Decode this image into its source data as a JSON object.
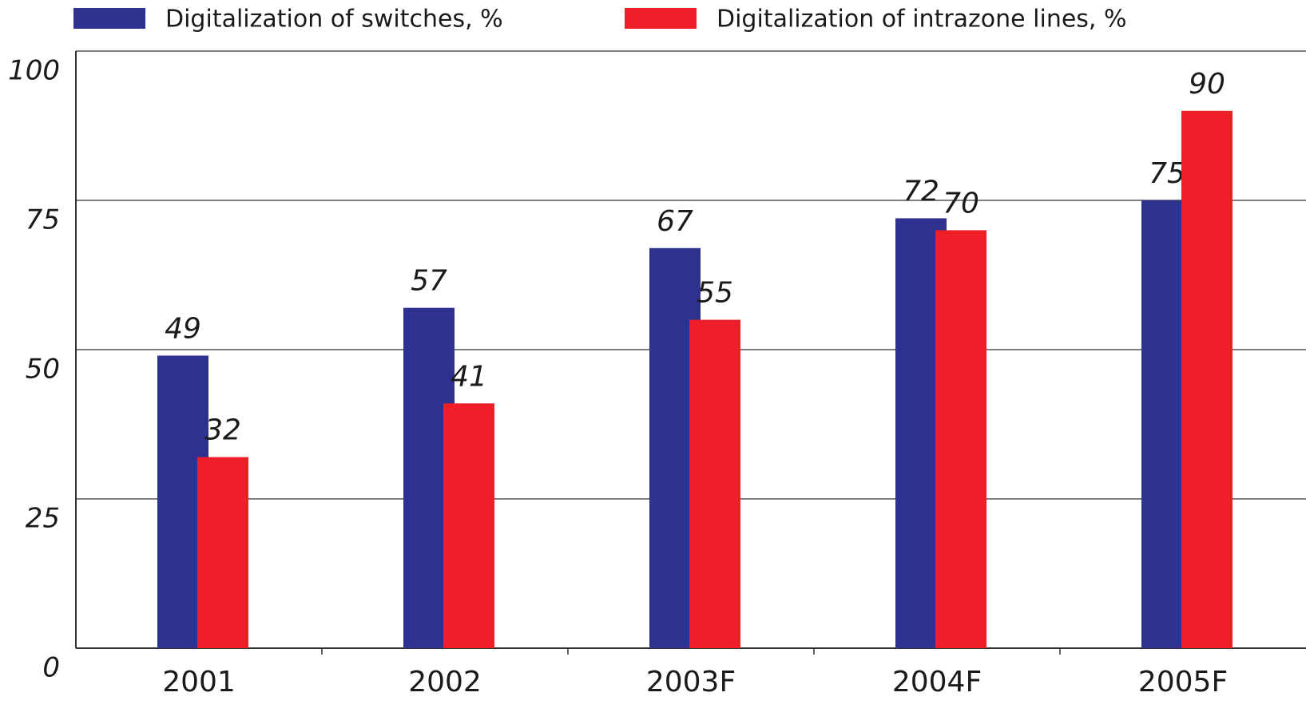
{
  "chart_data": {
    "type": "bar",
    "categories": [
      "2001",
      "2002",
      "2003F",
      "2004F",
      "2005F"
    ],
    "series": [
      {
        "name": "Digitalization of switches, %",
        "color": "#2e3190",
        "values": [
          49,
          57,
          67,
          72,
          75
        ]
      },
      {
        "name": "Digitalization of intrazone lines, %",
        "color": "#ee1f29",
        "values": [
          32,
          41,
          55,
          70,
          90
        ]
      }
    ],
    "ylim": [
      0,
      100
    ],
    "yticks": [
      0,
      25,
      50,
      75,
      100
    ],
    "grid": true
  }
}
